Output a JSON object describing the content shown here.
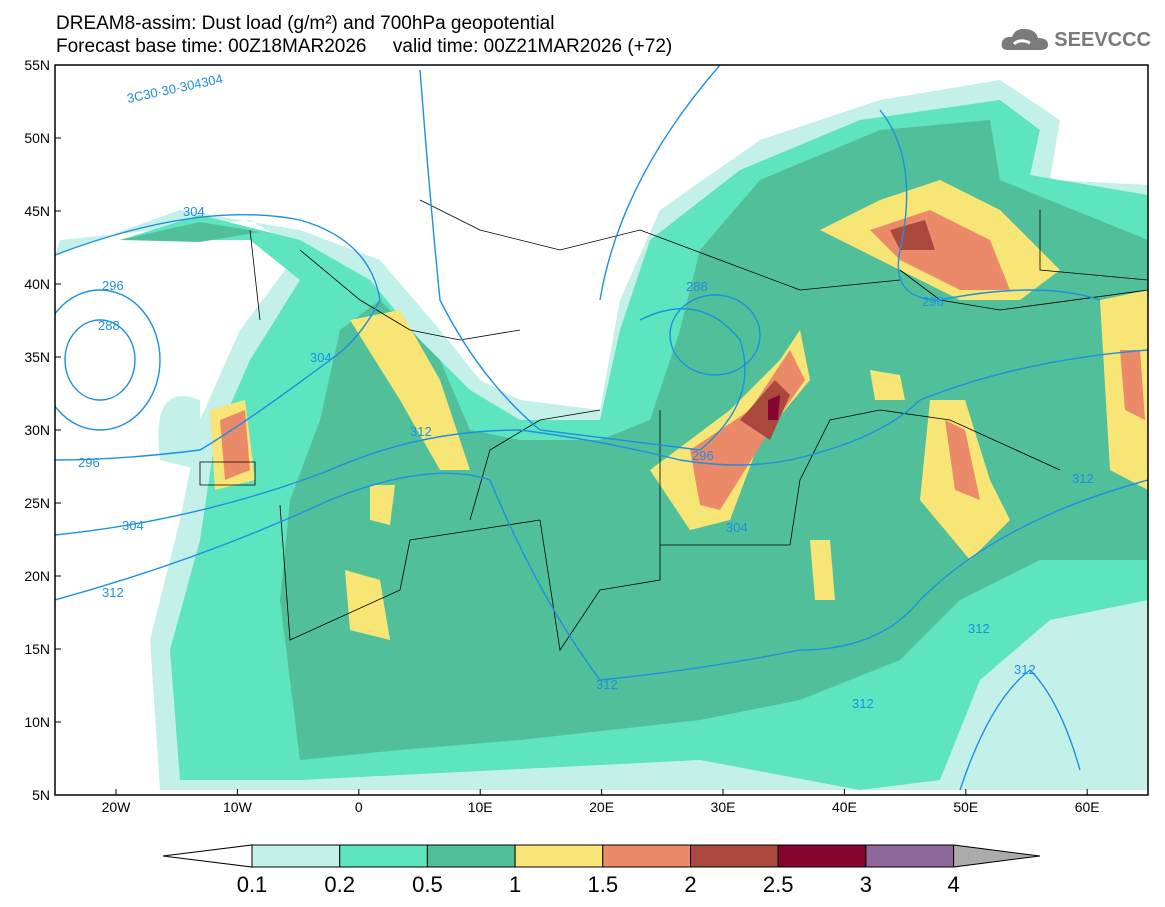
{
  "header": {
    "title_line1": "DREAM8-assim: Dust load (g/m²) and 700hPa geopotential",
    "title_line2": "Forecast base time: 00Z18MAR2026     valid time: 00Z21MAR2026 (+72)"
  },
  "logo": {
    "text": "SEEVCCC",
    "icon": "cloud-icon"
  },
  "axes": {
    "lat_labels": [
      "55N",
      "50N",
      "45N",
      "40N",
      "35N",
      "30N",
      "25N",
      "20N",
      "15N",
      "10N",
      "5N"
    ],
    "lon_labels": [
      "20W",
      "10W",
      "0",
      "10E",
      "20E",
      "30E",
      "40E",
      "50E",
      "60E"
    ]
  },
  "contour_labels": [
    "3C30·30·304304",
    "304",
    "296",
    "288",
    "304",
    "296",
    "312",
    "312",
    "296",
    "304",
    "288",
    "296",
    "304",
    "312",
    "312",
    "312",
    "312",
    "312"
  ],
  "colorbar": {
    "labels": [
      "0.1",
      "0.2",
      "0.5",
      "1",
      "1.5",
      "2",
      "2.5",
      "3",
      "4"
    ],
    "colors": [
      "#ffffff",
      "#c4f0ea",
      "#5ee4bf",
      "#52bf9b",
      "#f7e675",
      "#ea8a69",
      "#a9493e",
      "#85052e",
      "#8e6898",
      "#ababab"
    ]
  }
}
